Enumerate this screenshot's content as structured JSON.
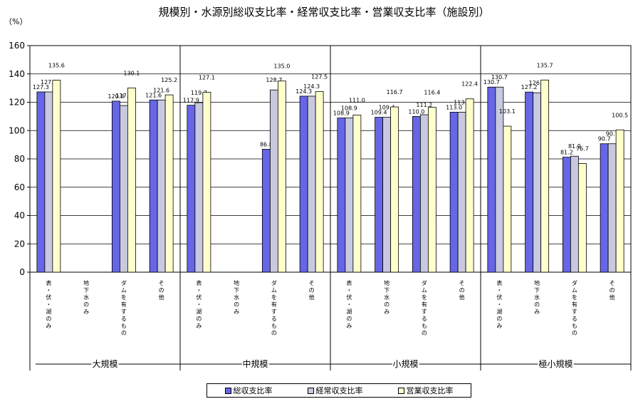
{
  "chart_data": {
    "type": "bar",
    "title": "規模別・水源別総収支比率・経常収支比率・営業収支比率（施設別）",
    "ylabel": "（%）",
    "ylim": [
      0,
      160
    ],
    "yticks": [
      0,
      20,
      40,
      60,
      80,
      100,
      120,
      140,
      160
    ],
    "grid": true,
    "legend_position": "bottom",
    "groups": [
      "大規模",
      "中規模",
      "小規模",
      "極小規模"
    ],
    "categories": [
      "表・伏・湖のみ",
      "地下水のみ",
      "ダムを有するもの",
      "その他"
    ],
    "series": [
      {
        "name": "総収支比率",
        "color": "#6666e6",
        "values": [
          [
            127.3,
            null,
            120.8,
            121.6
          ],
          [
            117.9,
            null,
            86.8,
            124.3
          ],
          [
            108.9,
            109.4,
            110.0,
            113.0
          ],
          [
            130.7,
            127.2,
            81.2,
            90.7
          ]
        ]
      },
      {
        "name": "経常収支比率",
        "color": "#c8c8e0",
        "values": [
          [
            127.3,
            null,
            117.7,
            121.6
          ],
          [
            119.7,
            null,
            128.7,
            124.3
          ],
          [
            108.9,
            109.4,
            111.2,
            113.0
          ],
          [
            130.7,
            126.7,
            81.9,
            90.7
          ]
        ]
      },
      {
        "name": "営業収支比率",
        "color": "#ffffcc",
        "values": [
          [
            135.6,
            null,
            130.1,
            125.2
          ],
          [
            127.1,
            null,
            135.0,
            127.5
          ],
          [
            111.0,
            116.7,
            116.4,
            122.4
          ],
          [
            103.1,
            135.7,
            76.7,
            100.5
          ]
        ]
      }
    ]
  }
}
